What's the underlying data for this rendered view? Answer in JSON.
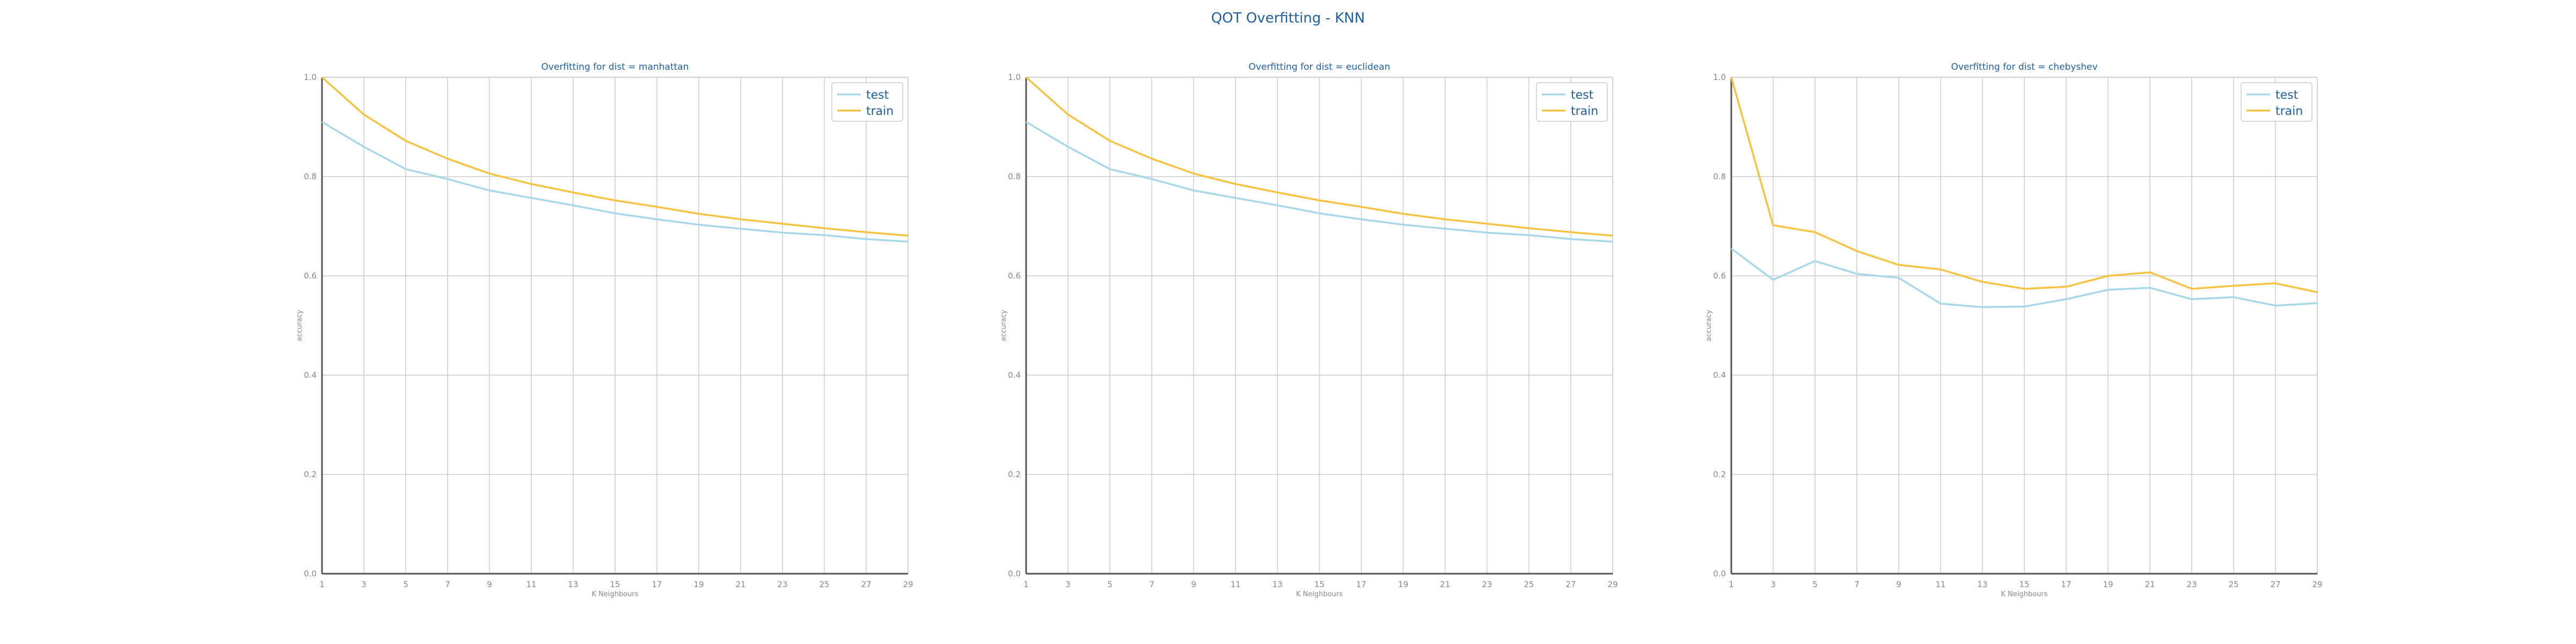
{
  "title": "QOT Overfitting - KNN",
  "colors": {
    "test": "#a8d8e8",
    "train": "#f5c242",
    "title": "#1f5f9f"
  },
  "chart_data": [
    {
      "type": "line",
      "title": "Overfitting for dist = manhattan",
      "xlabel": "K Neighbours",
      "ylabel": "accuracy",
      "x": [
        1,
        3,
        5,
        7,
        9,
        11,
        13,
        15,
        17,
        19,
        21,
        23,
        25,
        27,
        29
      ],
      "ylim": [
        0,
        1
      ],
      "yticks": [
        "0.0",
        "0.2",
        "0.4",
        "0.6",
        "0.8",
        "1.0"
      ],
      "grid": true,
      "legend": "top-right",
      "series": [
        {
          "name": "test",
          "values": [
            0.91,
            0.86,
            0.815,
            0.795,
            0.772,
            0.757,
            0.742,
            0.726,
            0.714,
            0.703,
            0.695,
            0.687,
            0.682,
            0.674,
            0.669
          ]
        },
        {
          "name": "train",
          "values": [
            1.0,
            0.925,
            0.872,
            0.836,
            0.806,
            0.785,
            0.768,
            0.752,
            0.739,
            0.725,
            0.714,
            0.705,
            0.696,
            0.688,
            0.681
          ]
        }
      ]
    },
    {
      "type": "line",
      "title": "Overfitting for dist = euclidean",
      "xlabel": "K Neighbours",
      "ylabel": "accuracy",
      "x": [
        1,
        3,
        5,
        7,
        9,
        11,
        13,
        15,
        17,
        19,
        21,
        23,
        25,
        27,
        29
      ],
      "ylim": [
        0,
        1
      ],
      "yticks": [
        "0.0",
        "0.2",
        "0.4",
        "0.6",
        "0.8",
        "1.0"
      ],
      "grid": true,
      "legend": "top-right",
      "series": [
        {
          "name": "test",
          "values": [
            0.91,
            0.86,
            0.815,
            0.795,
            0.772,
            0.757,
            0.742,
            0.726,
            0.714,
            0.703,
            0.695,
            0.687,
            0.682,
            0.674,
            0.669
          ]
        },
        {
          "name": "train",
          "values": [
            1.0,
            0.925,
            0.872,
            0.836,
            0.806,
            0.785,
            0.768,
            0.752,
            0.739,
            0.725,
            0.714,
            0.705,
            0.696,
            0.688,
            0.681
          ]
        }
      ]
    },
    {
      "type": "line",
      "title": "Overfitting for dist = chebyshev",
      "xlabel": "K Neighbours",
      "ylabel": "accuracy",
      "x": [
        1,
        3,
        5,
        7,
        9,
        11,
        13,
        15,
        17,
        19,
        21,
        23,
        25,
        27,
        29
      ],
      "ylim": [
        0,
        1
      ],
      "yticks": [
        "0.0",
        "0.2",
        "0.4",
        "0.6",
        "0.8",
        "1.0"
      ],
      "grid": true,
      "legend": "top-right",
      "series": [
        {
          "name": "test",
          "values": [
            0.655,
            0.592,
            0.63,
            0.604,
            0.596,
            0.544,
            0.537,
            0.538,
            0.553,
            0.572,
            0.576,
            0.553,
            0.557,
            0.54,
            0.545
          ]
        },
        {
          "name": "train",
          "values": [
            1.0,
            0.702,
            0.688,
            0.65,
            0.622,
            0.613,
            0.588,
            0.574,
            0.578,
            0.6,
            0.607,
            0.574,
            0.58,
            0.585,
            0.567
          ]
        }
      ]
    }
  ]
}
